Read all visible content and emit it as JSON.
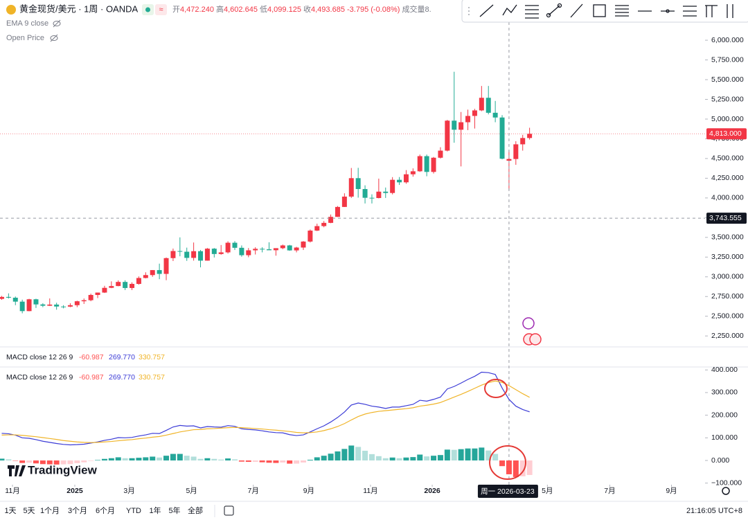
{
  "header": {
    "symbol": "黄金现货/美元 · 1周 · OANDA",
    "ohlc": [
      {
        "key": "开",
        "value": "4,472.240"
      },
      {
        "key": "高",
        "value": "4,602.645"
      },
      {
        "key": "低",
        "value": "4,099.125"
      },
      {
        "key": "收",
        "value": "4,493.685"
      }
    ],
    "change": "-3.795 (-0.08%)",
    "volume": "成交量8.",
    "legend": [
      "EMA 9 close",
      "Open Price"
    ]
  },
  "chart_data": [
    {
      "type": "candlestick",
      "grid": false,
      "up_color": "#f23645",
      "down_color": "#22ab94",
      "x": [
        0,
        1,
        2,
        3,
        4,
        5,
        6,
        7,
        8,
        9,
        10,
        11,
        12,
        13,
        14,
        15,
        16,
        17,
        18,
        19,
        20,
        21,
        22,
        23,
        24,
        25,
        26,
        27,
        28,
        29,
        30,
        31,
        32,
        33,
        34,
        35,
        36,
        37,
        38,
        39,
        40,
        41,
        42,
        43,
        44,
        45,
        46,
        47,
        48,
        49,
        50,
        51,
        52,
        53,
        54,
        55,
        56,
        57,
        58,
        59,
        60,
        61,
        62,
        63,
        64,
        65,
        66,
        67,
        68,
        69,
        70,
        71,
        72,
        73,
        74,
        75,
        76,
        77
      ],
      "open": [
        2720,
        2745,
        2735,
        2685,
        2565,
        2715,
        2650,
        2633,
        2648,
        2623,
        2622,
        2640,
        2690,
        2703,
        2770,
        2800,
        2860,
        2883,
        2935,
        2858,
        2910,
        2985,
        3022,
        3085,
        3037,
        3237,
        3327,
        3318,
        3240,
        3325,
        3205,
        3357,
        3289,
        3310,
        3432,
        3368,
        3274,
        3336,
        3355,
        3349,
        3337,
        3363,
        3398,
        3335,
        3371,
        3447,
        3586,
        3643,
        3684,
        3760,
        3886,
        4017,
        4251,
        4113,
        4002,
        3999,
        4080,
        4063,
        4230,
        4198,
        4300,
        4338,
        4530,
        4330,
        4510,
        4600,
        4980,
        4865,
        4960,
        5040,
        5110,
        5270,
        5080,
        5020,
        4472.24,
        4493.685,
        4680,
        4760
      ],
      "high": [
        2758,
        2790,
        2750,
        2710,
        2721,
        2722,
        2665,
        2726,
        2671,
        2640,
        2665,
        2697,
        2725,
        2786,
        2800,
        2886,
        2942,
        2955,
        2956,
        2930,
        3005,
        3057,
        3086,
        3167,
        3245,
        3358,
        3500,
        3370,
        3435,
        3340,
        3365,
        3365,
        3403,
        3450,
        3452,
        3398,
        3365,
        3375,
        3375,
        3438,
        3363,
        3409,
        3405,
        3380,
        3453,
        3600,
        3674,
        3707,
        3790,
        3897,
        4059,
        4380,
        4382,
        4160,
        4046,
        4245,
        4132,
        4264,
        4265,
        4353,
        4375,
        4550,
        4550,
        4520,
        4643,
        4990,
        5600,
        5090,
        5120,
        5130,
        5420,
        5420,
        5230,
        5050,
        4602.645,
        4720,
        4800,
        4890
      ],
      "low": [
        2708,
        2725,
        2640,
        2537,
        2563,
        2605,
        2615,
        2630,
        2583,
        2600,
        2615,
        2615,
        2656,
        2690,
        2730,
        2795,
        2856,
        2880,
        2832,
        2832,
        2900,
        2980,
        3000,
        2970,
        2957,
        3200,
        3260,
        3202,
        3205,
        3120,
        3204,
        3245,
        3280,
        3295,
        3340,
        3255,
        3248,
        3283,
        3310,
        3340,
        3268,
        3350,
        3330,
        3310,
        3340,
        3435,
        3580,
        3628,
        3680,
        3759,
        3885,
        4000,
        4004,
        3930,
        3930,
        3995,
        4000,
        4045,
        4165,
        4180,
        4270,
        4330,
        4275,
        4310,
        4500,
        4590,
        4700,
        4400,
        4860,
        4880,
        5100,
        5060,
        4960,
        4490,
        4099.125,
        4420,
        4600,
        4740
      ],
      "close": [
        2745,
        2735,
        2685,
        2565,
        2715,
        2650,
        2633,
        2648,
        2623,
        2622,
        2640,
        2690,
        2703,
        2770,
        2800,
        2860,
        2883,
        2935,
        2858,
        2910,
        2985,
        3022,
        3085,
        3037,
        3237,
        3327,
        3318,
        3240,
        3325,
        3205,
        3357,
        3289,
        3310,
        3432,
        3368,
        3274,
        3336,
        3355,
        3349,
        3337,
        3363,
        3398,
        3335,
        3371,
        3447,
        3586,
        3643,
        3684,
        3760,
        3886,
        4017,
        4251,
        4113,
        4002,
        3999,
        4080,
        4063,
        4230,
        4198,
        4300,
        4338,
        4530,
        4330,
        4510,
        4600,
        4980,
        4865,
        4960,
        5040,
        5110,
        5270,
        5080,
        5020,
        4497.48,
        4493.685,
        4680,
        4760,
        4813
      ],
      "xlim": [
        -0.25,
        102.6
      ],
      "ylim": [
        2120,
        6510
      ],
      "yticks": [
        {
          "value": 2250,
          "label": "2,250.000"
        },
        {
          "value": 2500,
          "label": "2,500.000"
        },
        {
          "value": 2750,
          "label": "2,750.000"
        },
        {
          "value": 3000,
          "label": "3,000.000"
        },
        {
          "value": 3250,
          "label": "3,250.000"
        },
        {
          "value": 3500,
          "label": "3,500.000"
        },
        {
          "value": 3750,
          "label": "3,750.000"
        },
        {
          "value": 4000,
          "label": "4,000.000"
        },
        {
          "value": 4250,
          "label": "4,250.000"
        },
        {
          "value": 4500,
          "label": "4,500.000"
        },
        {
          "value": 4750,
          "label": "4,750.000"
        },
        {
          "value": 5000,
          "label": "5,000.000"
        },
        {
          "value": 5250,
          "label": "5,250.000"
        },
        {
          "value": 5500,
          "label": "5,500.000"
        },
        {
          "value": 5750,
          "label": "5,750.000"
        },
        {
          "value": 6000,
          "label": "6,000.000"
        }
      ],
      "last_price": {
        "value": 4813,
        "label": "4,813.000"
      },
      "crosshair": {
        "price": {
          "value": 3743.555,
          "label": "3,743.555"
        },
        "x": 74,
        "date": "周一 2026-03-23"
      }
    },
    {
      "type": "macd",
      "title": "MACD close 12 26 9",
      "grid": false,
      "xlim": [
        -0.25,
        102.6
      ],
      "ylim": [
        -107,
        410
      ],
      "x": [
        0,
        1,
        2,
        3,
        4,
        5,
        6,
        7,
        8,
        9,
        10,
        11,
        12,
        13,
        14,
        15,
        16,
        17,
        18,
        19,
        20,
        21,
        22,
        23,
        24,
        25,
        26,
        27,
        28,
        29,
        30,
        31,
        32,
        33,
        34,
        35,
        36,
        37,
        38,
        39,
        40,
        41,
        42,
        43,
        44,
        45,
        46,
        47,
        48,
        49,
        50,
        51,
        52,
        53,
        54,
        55,
        56,
        57,
        58,
        59,
        60,
        61,
        62,
        63,
        64,
        65,
        66,
        67,
        68,
        69,
        70,
        71,
        72,
        73,
        74,
        75,
        76,
        77
      ],
      "histogram": {
        "values": [
          8,
          5,
          -1,
          -11,
          -10,
          -13,
          -16,
          -17,
          -18,
          -17,
          -16,
          -12,
          -8,
          -2,
          2,
          7,
          10,
          14,
          10,
          10,
          12,
          14,
          17,
          13,
          21,
          29,
          29,
          21,
          17,
          7,
          10,
          7,
          4,
          9,
          5,
          -5,
          -6,
          -6,
          -8,
          -10,
          -11,
          -9,
          -14,
          -14,
          -9,
          3,
          14,
          21,
          30,
          40,
          51,
          66,
          60,
          43,
          28,
          19,
          10,
          13,
          10,
          13,
          15,
          26,
          18,
          21,
          24,
          48,
          47,
          50,
          53,
          53,
          57,
          44,
          29,
          -25,
          -60.987,
          -73,
          -70,
          -64
        ],
        "label": "-60.987",
        "colors": {
          "pos_up": "#26a69a",
          "pos_down": "#b2dfdb",
          "neg_down": "#ff5252",
          "neg_up": "#ffcdd2"
        }
      },
      "series": [
        {
          "color": "#3b3bd6",
          "label": "269.770",
          "values": [
            120,
            118,
            112,
            100,
            98,
            92,
            85,
            80,
            75,
            71,
            69,
            70,
            72,
            77,
            82,
            89,
            94,
            101,
            100,
            102,
            108,
            113,
            120,
            119,
            133,
            148,
            155,
            152,
            153,
            144,
            150,
            148,
            147,
            154,
            151,
            140,
            137,
            135,
            131,
            126,
            123,
            122,
            114,
            110,
            113,
            126,
            140,
            153,
            170,
            190,
            214,
            245,
            254,
            248,
            240,
            236,
            230,
            236,
            236,
            242,
            248,
            266,
            262,
            270,
            280,
            316,
            327,
            342,
            358,
            372,
            390,
            388,
            380,
            320,
            269.77,
            240,
            225,
            215
          ]
        },
        {
          "color": "#f0b428",
          "label": "330.757",
          "values": [
            112,
            113,
            113,
            111,
            108,
            105,
            101,
            97,
            93,
            88,
            85,
            82,
            80,
            79,
            80,
            82,
            84,
            87,
            90,
            92,
            96,
            99,
            103,
            106,
            112,
            119,
            126,
            131,
            136,
            137,
            140,
            141,
            143,
            145,
            146,
            145,
            143,
            141,
            139,
            136,
            134,
            131,
            128,
            124,
            122,
            123,
            126,
            132,
            140,
            150,
            163,
            179,
            194,
            205,
            212,
            217,
            220,
            223,
            226,
            229,
            233,
            240,
            244,
            249,
            256,
            268,
            280,
            292,
            305,
            319,
            333,
            344,
            351,
            345,
            330.757,
            313,
            295,
            279
          ]
        }
      ],
      "yticks": [
        {
          "value": -100,
          "label": "−100.000"
        },
        {
          "value": 0,
          "label": "0.000"
        },
        {
          "value": 100,
          "label": "100.000"
        },
        {
          "value": 200,
          "label": "200.000"
        },
        {
          "value": 300,
          "label": "300.000"
        },
        {
          "value": 400,
          "label": "400.000"
        }
      ],
      "xticks": [
        {
          "value": 1.57,
          "label": "11月"
        },
        {
          "value": 10.66,
          "label": "2025"
        },
        {
          "value": 18.6,
          "label": "3月"
        },
        {
          "value": 27.7,
          "label": "5月"
        },
        {
          "value": 36.7,
          "label": "7月"
        },
        {
          "value": 44.8,
          "label": "9月"
        },
        {
          "value": 53.8,
          "label": "11月"
        },
        {
          "value": 62.8,
          "label": "2026"
        },
        {
          "value": 79.6,
          "label": "5月"
        },
        {
          "value": 88.7,
          "label": "7月"
        },
        {
          "value": 97.7,
          "label": "9月"
        }
      ]
    }
  ],
  "logo": "TradingView",
  "ranges": [
    "1天",
    "5天",
    "1个月",
    "3个月",
    "6个月",
    "YTD",
    "1年",
    "5年",
    "全部"
  ],
  "clock": "21:16:05 UTC+8"
}
